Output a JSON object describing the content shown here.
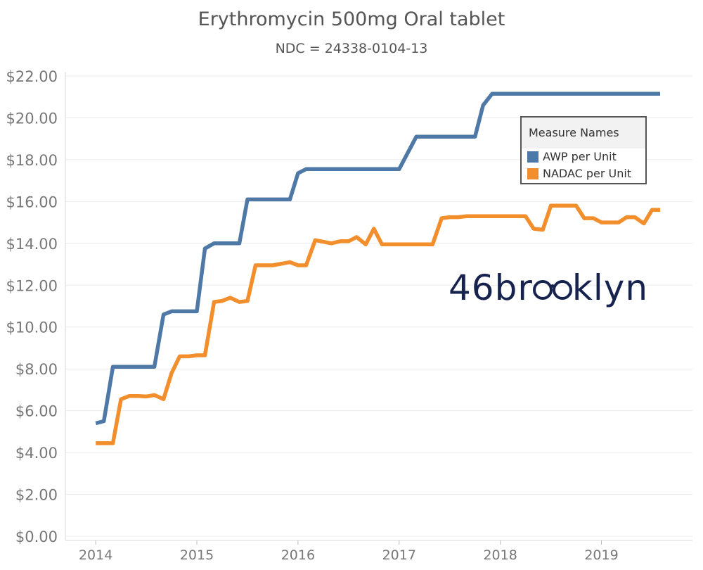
{
  "chart_data": {
    "type": "line",
    "title": "Erythromycin 500mg Oral tablet",
    "subtitle": "NDC = 24338-0104-13",
    "xlabel": "",
    "ylabel": "",
    "x_ticks": [
      "2014",
      "2015",
      "2016",
      "2017",
      "2018",
      "2019"
    ],
    "y_ticks": [
      "$0.00",
      "$2.00",
      "$4.00",
      "$6.00",
      "$8.00",
      "$10.00",
      "$12.00",
      "$14.00",
      "$16.00",
      "$18.00",
      "$20.00",
      "$22.00"
    ],
    "xlim": [
      2013.7,
      2019.9
    ],
    "ylim": [
      -0.2,
      22.2
    ],
    "grid": true,
    "legend_title": "Measure Names",
    "legend_position": "top-right",
    "series": [
      {
        "name": "AWP per Unit",
        "color": "#4e79a7",
        "points": [
          [
            2014.0,
            5.4
          ],
          [
            2014.08,
            5.5
          ],
          [
            2014.17,
            8.1
          ],
          [
            2014.58,
            8.1
          ],
          [
            2014.67,
            10.6
          ],
          [
            2014.75,
            10.75
          ],
          [
            2015.0,
            10.75
          ],
          [
            2015.08,
            13.75
          ],
          [
            2015.17,
            14.0
          ],
          [
            2015.42,
            14.0
          ],
          [
            2015.5,
            16.1
          ],
          [
            2015.92,
            16.1
          ],
          [
            2016.0,
            17.35
          ],
          [
            2016.08,
            17.55
          ],
          [
            2017.0,
            17.55
          ],
          [
            2017.17,
            19.1
          ],
          [
            2017.75,
            19.1
          ],
          [
            2017.83,
            20.6
          ],
          [
            2017.92,
            21.15
          ],
          [
            2019.58,
            21.15
          ]
        ]
      },
      {
        "name": "NADAC per Unit",
        "color": "#f28e2b",
        "points": [
          [
            2014.0,
            4.45
          ],
          [
            2014.17,
            4.45
          ],
          [
            2014.25,
            6.55
          ],
          [
            2014.33,
            6.7
          ],
          [
            2014.42,
            6.7
          ],
          [
            2014.5,
            6.68
          ],
          [
            2014.58,
            6.75
          ],
          [
            2014.67,
            6.55
          ],
          [
            2014.75,
            7.8
          ],
          [
            2014.83,
            8.6
          ],
          [
            2014.92,
            8.6
          ],
          [
            2015.0,
            8.65
          ],
          [
            2015.08,
            8.65
          ],
          [
            2015.17,
            11.2
          ],
          [
            2015.25,
            11.25
          ],
          [
            2015.33,
            11.4
          ],
          [
            2015.42,
            11.2
          ],
          [
            2015.5,
            11.25
          ],
          [
            2015.58,
            12.95
          ],
          [
            2015.75,
            12.95
          ],
          [
            2015.92,
            13.1
          ],
          [
            2016.0,
            12.95
          ],
          [
            2016.08,
            12.95
          ],
          [
            2016.17,
            14.15
          ],
          [
            2016.33,
            14.0
          ],
          [
            2016.42,
            14.1
          ],
          [
            2016.5,
            14.1
          ],
          [
            2016.58,
            14.3
          ],
          [
            2016.67,
            13.95
          ],
          [
            2016.75,
            14.7
          ],
          [
            2016.83,
            13.95
          ],
          [
            2017.33,
            13.95
          ],
          [
            2017.42,
            15.2
          ],
          [
            2017.5,
            15.25
          ],
          [
            2017.58,
            15.25
          ],
          [
            2017.67,
            15.3
          ],
          [
            2018.25,
            15.3
          ],
          [
            2018.33,
            14.7
          ],
          [
            2018.42,
            14.65
          ],
          [
            2018.5,
            15.8
          ],
          [
            2018.75,
            15.8
          ],
          [
            2018.83,
            15.2
          ],
          [
            2018.92,
            15.2
          ],
          [
            2019.0,
            15.0
          ],
          [
            2019.17,
            15.0
          ],
          [
            2019.25,
            15.25
          ],
          [
            2019.33,
            15.25
          ],
          [
            2019.42,
            14.95
          ],
          [
            2019.5,
            15.6
          ],
          [
            2019.58,
            15.6
          ]
        ]
      }
    ]
  },
  "watermark": {
    "text_left": "46br",
    "text_right": "klyn",
    "glasses": "oo",
    "color": "#17234f"
  }
}
